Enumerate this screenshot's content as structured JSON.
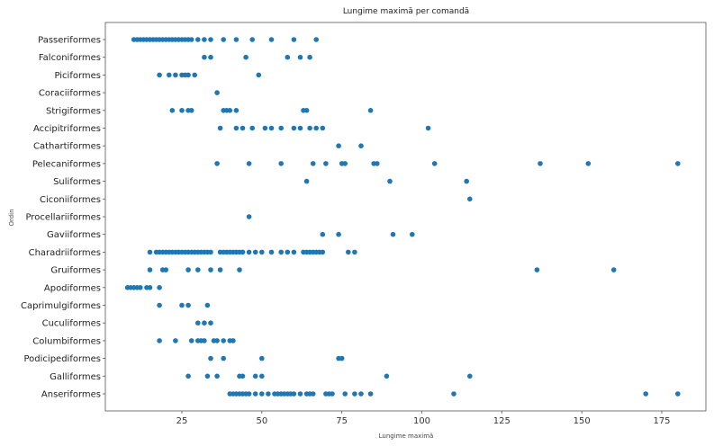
{
  "chart_data": {
    "type": "scatter",
    "title": "Lungime maximă per comandă",
    "xlabel": "Lungime maximă",
    "ylabel": "Ordin",
    "xlim": [
      0,
      190
    ],
    "x_ticks": [
      25,
      50,
      75,
      100,
      125,
      150,
      175
    ],
    "x_tick_labels": [
      "25",
      "50",
      "75",
      "100",
      "125",
      "150",
      "175"
    ],
    "grid": false,
    "marker_color": "#1f77b4",
    "categories": [
      "Passeriformes",
      "Falconiformes",
      "Piciformes",
      "Coraciiformes",
      "Strigiformes",
      "Accipitriformes",
      "Cathartiformes",
      "Pelecaniformes",
      "Suliformes",
      "Ciconiiformes",
      "Procellariiformes",
      "Gaviiformes",
      "Charadriiformes",
      "Gruiformes",
      "Apodiformes",
      "Caprimulgiformes",
      "Cuculiformes",
      "Columbiformes",
      "Podicipediformes",
      "Galliformes",
      "Anseriformes"
    ],
    "points": {
      "Passeriformes": [
        10,
        11,
        12,
        13,
        14,
        15,
        16,
        17,
        18,
        19,
        20,
        21,
        22,
        23,
        24,
        25,
        26,
        27,
        28,
        30,
        32,
        34,
        38,
        42,
        47,
        53,
        60,
        67
      ],
      "Falconiformes": [
        32,
        34,
        45,
        58,
        62,
        65
      ],
      "Piciformes": [
        18,
        21,
        23,
        25,
        26,
        27,
        29,
        49
      ],
      "Coraciiformes": [
        36
      ],
      "Strigiformes": [
        22,
        25,
        27,
        28,
        38,
        39,
        40,
        42,
        63,
        64,
        84
      ],
      "Accipitriformes": [
        37,
        42,
        44,
        47,
        51,
        53,
        56,
        60,
        62,
        65,
        67,
        69,
        102
      ],
      "Cathartiformes": [
        74,
        81
      ],
      "Pelecaniformes": [
        36,
        46,
        56,
        66,
        70,
        75,
        76,
        85,
        86,
        104,
        137,
        152,
        180
      ],
      "Suliformes": [
        64,
        90,
        114
      ],
      "Ciconiiformes": [
        115
      ],
      "Procellariiformes": [
        46
      ],
      "Gaviiformes": [
        69,
        74,
        91,
        97
      ],
      "Charadriiformes": [
        15,
        17,
        18,
        19,
        20,
        21,
        22,
        23,
        24,
        25,
        26,
        27,
        28,
        29,
        30,
        31,
        32,
        33,
        34,
        37,
        38,
        39,
        40,
        41,
        42,
        43,
        44,
        46,
        48,
        50,
        53,
        56,
        58,
        60,
        63,
        64,
        65,
        66,
        67,
        68,
        69,
        77,
        79
      ],
      "Gruiformes": [
        15,
        19,
        20,
        27,
        30,
        34,
        37,
        43,
        136,
        160
      ],
      "Apodiformes": [
        8,
        9,
        10,
        11,
        12,
        14,
        15,
        18
      ],
      "Caprimulgiformes": [
        18,
        25,
        27,
        33
      ],
      "Cuculiformes": [
        30,
        32,
        34
      ],
      "Columbiformes": [
        18,
        23,
        28,
        30,
        31,
        32,
        35,
        36,
        38,
        40,
        41
      ],
      "Podicipediformes": [
        34,
        38,
        50,
        74,
        75
      ],
      "Galliformes": [
        27,
        33,
        36,
        43,
        44,
        48,
        50,
        89,
        115
      ],
      "Anseriformes": [
        40,
        41,
        42,
        43,
        44,
        45,
        46,
        48,
        50,
        52,
        54,
        55,
        56,
        57,
        58,
        59,
        60,
        62,
        64,
        65,
        66,
        70,
        71,
        72,
        76,
        79,
        81,
        84,
        110,
        170,
        180
      ]
    }
  }
}
